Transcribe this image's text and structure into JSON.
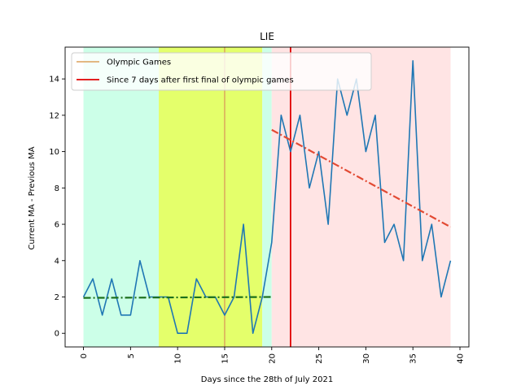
{
  "chart_data": {
    "type": "line",
    "title": "LIE",
    "xlabel": "Days since the 28th of July 2021",
    "ylabel": "Current MA - Previous MA",
    "xlim": [
      -1.95,
      40.95
    ],
    "ylim": [
      -0.75,
      15.75
    ],
    "x_ticks": [
      0,
      5,
      10,
      15,
      20,
      25,
      30,
      35,
      40
    ],
    "y_ticks": [
      0,
      2,
      4,
      6,
      8,
      10,
      12,
      14
    ],
    "grid": false,
    "legend_position": "upper-left",
    "series": [
      {
        "color": "#1f77b4",
        "x": [
          0,
          1,
          2,
          3,
          4,
          5,
          6,
          7,
          8,
          9,
          10,
          11,
          12,
          13,
          14,
          15,
          16,
          17,
          18,
          19,
          20,
          21,
          22,
          23,
          24,
          25,
          26,
          27,
          28,
          29,
          30,
          31,
          32,
          33,
          34,
          35,
          36,
          37,
          38,
          39
        ],
        "values": [
          2,
          3,
          1,
          3,
          1,
          1,
          4,
          2,
          2,
          2,
          0,
          0,
          3,
          2,
          2,
          1,
          2,
          6,
          0,
          2,
          5,
          12,
          10,
          12,
          8,
          10,
          6,
          14,
          12,
          14,
          10,
          12,
          5,
          6,
          4,
          15,
          4,
          6,
          2,
          4
        ]
      }
    ],
    "trend_lines": [
      {
        "color": "#1b6f1b",
        "style": "dash-dot",
        "x": [
          0,
          20
        ],
        "y": [
          1.95,
          2.0
        ]
      },
      {
        "color": "#e24a33",
        "style": "dash-dot",
        "x": [
          20,
          39
        ],
        "y": [
          11.2,
          5.85
        ]
      }
    ],
    "shaded_regions": [
      {
        "color": "#ccffe8",
        "x": [
          0,
          8
        ]
      },
      {
        "color": "#e4ff6b",
        "x": [
          8,
          19
        ]
      },
      {
        "color": "#ccffe8",
        "x": [
          19,
          20
        ]
      },
      {
        "color": "#ffe4e4",
        "x": [
          20,
          39
        ]
      }
    ],
    "vertical_lines": [
      {
        "x": 15,
        "color": "#dba15a",
        "legend": "Olympic Games"
      },
      {
        "x": 22,
        "color": "#e00000",
        "legend": "Since 7 days after first final of olympic games"
      }
    ],
    "legend": [
      {
        "label": "Olympic Games",
        "color": "#dba15a"
      },
      {
        "label": "Since 7 days after first final of olympic games",
        "color": "#e00000"
      }
    ]
  }
}
